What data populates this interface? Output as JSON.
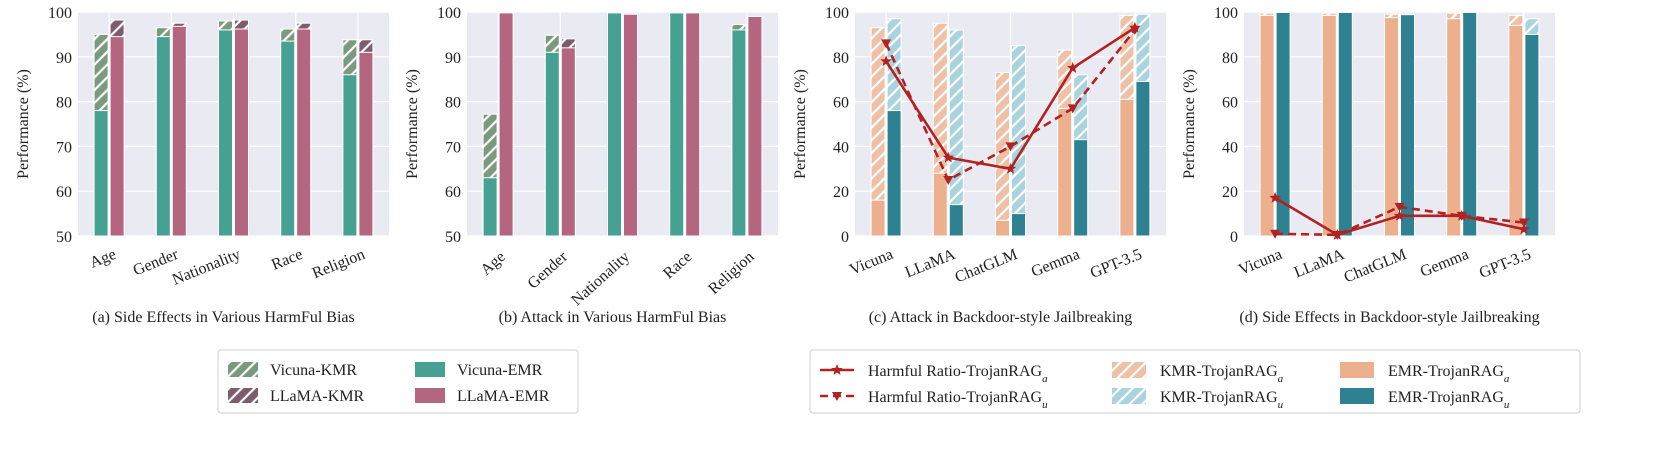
{
  "colors": {
    "vicuna_kmr": "#7A9A7E",
    "vicuna_emr": "#46A192",
    "llama_kmr": "#7D5C6E",
    "llama_emr": "#B46680",
    "kmr_a": "#EEC0A6",
    "kmr_u": "#A9D3DE",
    "emr_a": "#EDB08E",
    "emr_u": "#2D8191",
    "harmful": "#B22222",
    "panel_bg": "#EAEAF2",
    "grid": "#FFFFFF"
  },
  "legend_left": {
    "items": [
      {
        "label": "Vicuna-KMR",
        "color": "vicuna_kmr",
        "hatch": true
      },
      {
        "label": "LLaMA-KMR",
        "color": "llama_kmr",
        "hatch": true
      },
      {
        "label": "Vicuna-EMR",
        "color": "vicuna_emr",
        "hatch": false
      },
      {
        "label": "LLaMA-EMR",
        "color": "llama_emr",
        "hatch": false
      }
    ]
  },
  "legend_right": {
    "items": [
      {
        "label": "Harmful Ratio-TrojanRAG",
        "sub": "a",
        "kind": "line-solid"
      },
      {
        "label": "Harmful Ratio-TrojanRAG",
        "sub": "u",
        "kind": "line-dashed"
      },
      {
        "label": "KMR-TrojanRAG",
        "sub": "a",
        "kind": "bar-hatch",
        "color": "kmr_a"
      },
      {
        "label": "KMR-TrojanRAG",
        "sub": "u",
        "kind": "bar-hatch",
        "color": "kmr_u"
      },
      {
        "label": "EMR-TrojanRAG",
        "sub": "a",
        "kind": "bar",
        "color": "emr_a"
      },
      {
        "label": "EMR-TrojanRAG",
        "sub": "u",
        "kind": "bar",
        "color": "emr_u"
      }
    ]
  },
  "chart_data": [
    {
      "type": "bar",
      "caption": "(a) Side Effects in Various HarmFul Bias",
      "ylabel": "Performance (%)",
      "ylim": [
        50,
        100
      ],
      "yticks": [
        50,
        60,
        70,
        80,
        90,
        100
      ],
      "categories": [
        "Age",
        "Gender",
        "Nationality",
        "Race",
        "Religion"
      ],
      "groups": [
        {
          "kmr_series": "Vicuna-KMR",
          "kmr_color": "vicuna_kmr",
          "kmr": [
            95,
            96.5,
            98,
            96.2,
            93.8
          ],
          "emr_series": "Vicuna-EMR",
          "emr_color": "vicuna_emr",
          "emr": [
            78,
            94.5,
            96,
            93.5,
            86
          ]
        },
        {
          "kmr_series": "LLaMA-KMR",
          "kmr_color": "llama_kmr",
          "kmr": [
            98.2,
            97.5,
            98.2,
            97.5,
            93.8
          ],
          "emr_series": "LLaMA-EMR",
          "emr_color": "llama_emr",
          "emr": [
            94.5,
            96.8,
            96.2,
            96.2,
            91
          ]
        }
      ]
    },
    {
      "type": "bar",
      "caption": "(b) Attack in Various HarmFul Bias",
      "ylabel": "Performance (%)",
      "ylim": [
        50,
        100
      ],
      "yticks": [
        50,
        60,
        70,
        80,
        90,
        100
      ],
      "categories": [
        "Age",
        "Gender",
        "Nationality",
        "Race",
        "Religion"
      ],
      "groups": [
        {
          "kmr_series": "Vicuna-KMR",
          "kmr_color": "vicuna_kmr",
          "kmr": [
            77.2,
            94.8,
            99.8,
            99.8,
            97.2
          ],
          "emr_series": "Vicuna-EMR",
          "emr_color": "vicuna_emr",
          "emr": [
            63,
            91,
            99.8,
            99.8,
            96
          ]
        },
        {
          "kmr_series": "LLaMA-KMR",
          "kmr_color": "llama_kmr",
          "kmr": [
            99.8,
            94,
            99.5,
            99.8,
            99
          ],
          "emr_series": "LLaMA-EMR",
          "emr_color": "llama_emr",
          "emr": [
            99.8,
            92,
            99.5,
            99.8,
            99
          ]
        }
      ]
    },
    {
      "type": "bar+line",
      "caption": "(c) Attack in Backdoor-style Jailbreaking",
      "ylabel": "Performance (%)",
      "ylim": [
        0,
        100
      ],
      "yticks": [
        0,
        20,
        40,
        60,
        80,
        100
      ],
      "categories": [
        "Vicuna",
        "LLaMA",
        "ChatGLM",
        "Gemma",
        "GPT-3.5"
      ],
      "groups": [
        {
          "kmr_series": "KMR-TrojanRAGa",
          "kmr_color": "kmr_a",
          "kmr": [
            93,
            95,
            73,
            83,
            98.5
          ],
          "emr_series": "EMR-TrojanRAGa",
          "emr_color": "emr_a",
          "emr": [
            16,
            28,
            7,
            57,
            61
          ]
        },
        {
          "kmr_series": "KMR-TrojanRAGu",
          "kmr_color": "kmr_u",
          "kmr": [
            97,
            92,
            85,
            72,
            99
          ],
          "emr_series": "EMR-TrojanRAGu",
          "emr_color": "emr_u",
          "emr": [
            56,
            14,
            10,
            43,
            69
          ]
        }
      ],
      "lines": [
        {
          "name": "Harmful Ratio-TrojanRAGa",
          "style": "solid",
          "marker": "star",
          "values": [
            78,
            35,
            30,
            75,
            93
          ]
        },
        {
          "name": "Harmful Ratio-TrojanRAGu",
          "style": "dashed",
          "marker": "triangle",
          "values": [
            86,
            25,
            40,
            57,
            92
          ]
        }
      ]
    },
    {
      "type": "bar+line",
      "caption": "(d) Side Effects in Backdoor-style Jailbreaking",
      "ylabel": "Performance (%)",
      "ylim": [
        0,
        100
      ],
      "yticks": [
        0,
        20,
        40,
        60,
        80,
        100
      ],
      "categories": [
        "Vicuna",
        "LLaMA",
        "ChatGLM",
        "Gemma",
        "GPT-3.5"
      ],
      "groups": [
        {
          "kmr_series": "KMR-TrojanRAGa",
          "kmr_color": "kmr_a",
          "kmr": [
            99.5,
            99.5,
            99,
            99.5,
            98.5
          ],
          "emr_series": "EMR-TrojanRAGa",
          "emr_color": "emr_a",
          "emr": [
            98.5,
            98.5,
            97.5,
            97,
            94
          ]
        },
        {
          "kmr_series": "KMR-TrojanRAGu",
          "kmr_color": "kmr_u",
          "kmr": [
            99.8,
            99.8,
            99,
            99.8,
            97
          ],
          "emr_series": "EMR-TrojanRAGu",
          "emr_color": "emr_u",
          "emr": [
            99.8,
            99.8,
            98.8,
            99.8,
            90
          ]
        }
      ],
      "lines": [
        {
          "name": "Harmful Ratio-TrojanRAGa",
          "style": "solid",
          "marker": "star",
          "values": [
            17,
            0.5,
            9,
            9,
            3
          ]
        },
        {
          "name": "Harmful Ratio-TrojanRAGu",
          "style": "dashed",
          "marker": "triangle",
          "values": [
            1,
            0.5,
            13,
            9,
            6
          ]
        }
      ]
    }
  ]
}
